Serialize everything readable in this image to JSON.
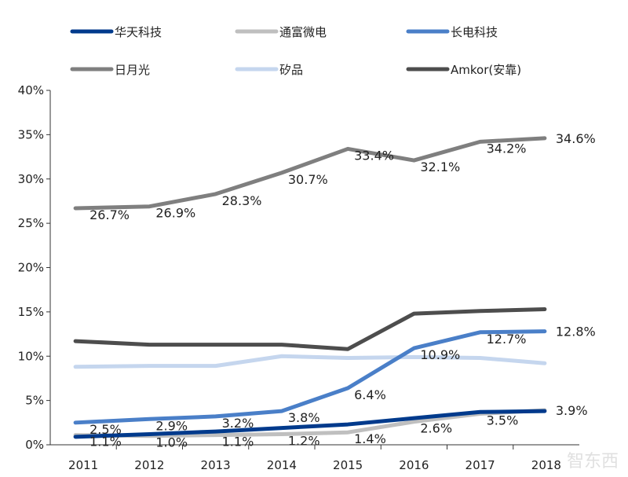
{
  "chart_data": {
    "type": "line",
    "categories": [
      "2011",
      "2012",
      "2013",
      "2014",
      "2015",
      "2016",
      "2017",
      "2018"
    ],
    "ylim": [
      0,
      40
    ],
    "y_ticks": [
      "0%",
      "5%",
      "10%",
      "15%",
      "20%",
      "25%",
      "30%",
      "35%",
      "40%"
    ],
    "grid": false,
    "legend_placement": "top",
    "series": [
      {
        "name": "华天科技",
        "color": "#003A8C",
        "values": [
          0.9,
          1.2,
          1.5,
          1.9,
          2.3,
          3.0,
          3.7,
          3.8
        ],
        "labels": null
      },
      {
        "name": "通富微电",
        "color": "#BFBFBF",
        "values": [
          1.1,
          1.0,
          1.1,
          1.2,
          1.4,
          2.6,
          3.5,
          3.9
        ],
        "labels": [
          "1.1%",
          "1.0%",
          "1.1%",
          "1.2%",
          "1.4%",
          "2.6%",
          "3.5%",
          "3.9%"
        ]
      },
      {
        "name": "长电科技",
        "color": "#4A7FC8",
        "values": [
          2.5,
          2.9,
          3.2,
          3.8,
          6.4,
          10.9,
          12.7,
          12.8
        ],
        "labels": [
          "2.5%",
          "2.9%",
          "3.2%",
          "3.8%",
          "6.4%",
          "10.9%",
          "12.7%",
          "12.8%"
        ]
      },
      {
        "name": "日月光",
        "color": "#7F7F7F",
        "values": [
          26.7,
          26.9,
          28.3,
          30.7,
          33.4,
          32.1,
          34.2,
          34.6
        ],
        "labels": [
          "26.7%",
          "26.9%",
          "28.3%",
          "30.7%",
          "33.4%",
          "32.1%",
          "34.2%",
          "34.6%"
        ]
      },
      {
        "name": "矽品",
        "color": "#C5D6EE",
        "values": [
          8.8,
          8.9,
          8.9,
          10.0,
          9.8,
          9.9,
          9.8,
          9.2
        ],
        "labels": null
      },
      {
        "name": "Amkor(安靠)",
        "color": "#4D4D4D",
        "values": [
          11.7,
          11.3,
          11.3,
          11.3,
          10.8,
          14.8,
          15.1,
          15.3
        ],
        "labels": null
      }
    ]
  },
  "watermark": "智东西"
}
